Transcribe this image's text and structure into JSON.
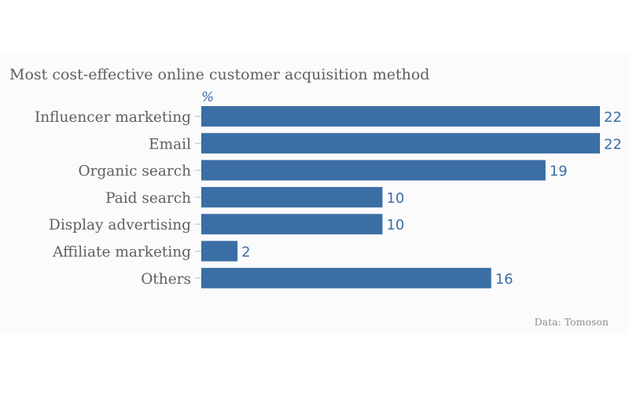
{
  "chart_data": {
    "type": "bar",
    "orientation": "horizontal",
    "title": "Most cost-effective online customer acquisition method",
    "unit": "%",
    "categories": [
      "Influencer marketing",
      "Email",
      "Organic search",
      "Paid search",
      "Display advertising",
      "Affiliate marketing",
      "Others"
    ],
    "values": [
      22,
      22,
      19,
      10,
      10,
      2,
      16
    ],
    "xlim": [
      0,
      22
    ],
    "grid": false,
    "legend": "none",
    "bar_color": "#3a6ea5",
    "source": "Data: Tomoson"
  }
}
